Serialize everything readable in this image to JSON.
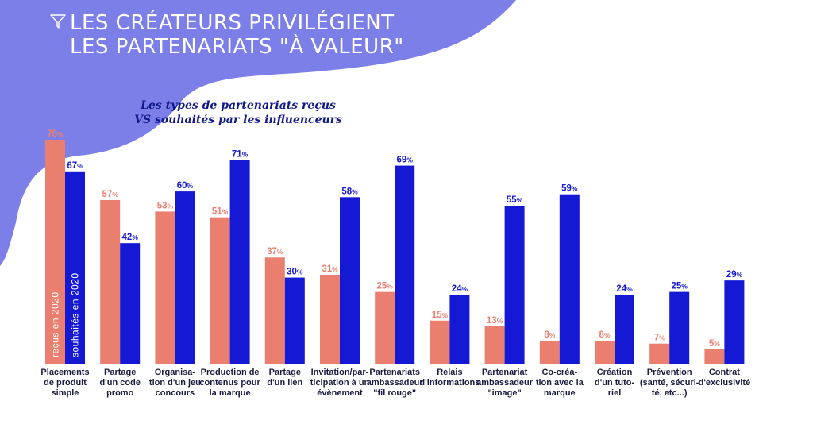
{
  "title": {
    "line1": "LES CRÉATEURS PRIVILÉGIENT",
    "line2": "LES PARTENARIATS \"À VALEUR\"",
    "icon": "funnel-icon"
  },
  "colors": {
    "received": "#ea7f6f",
    "wished": "#1519d4",
    "blob": "#7c7fe8",
    "title": "#ffffff",
    "subtitle": "#10188a"
  },
  "chart_data": {
    "type": "bar",
    "subtitle": [
      "Les types de partenariats reçus",
      "VS souhaités par les influenceurs"
    ],
    "categories": [
      [
        "Placements",
        "de produit",
        "simple"
      ],
      [
        "Partage",
        "d'un code",
        "promo"
      ],
      [
        "Organisa-",
        "tion d'un jeu",
        "concours"
      ],
      [
        "Production de",
        "contenus pour",
        "la marque"
      ],
      [
        "Partage",
        "d'un lien"
      ],
      [
        "Invitation/par-",
        "ticipation à un",
        "évènement"
      ],
      [
        "Partenariats",
        "ambassadeur",
        "\"fil rouge\""
      ],
      [
        "Relais",
        "d'informations"
      ],
      [
        "Partenariat",
        "ambassadeur",
        "\"image\""
      ],
      [
        "Co-créa-",
        "tion avec la",
        "marque"
      ],
      [
        "Création",
        "d'un tuto-",
        "riel"
      ],
      [
        "Prévention",
        "(santé, sécuri-",
        "té, etc...)"
      ],
      [
        "Contrat",
        "d'exclusivité"
      ]
    ],
    "series": [
      {
        "name": "reçus en 2020",
        "values": [
          78,
          57,
          53,
          51,
          37,
          31,
          25,
          15,
          13,
          8,
          8,
          7,
          5
        ]
      },
      {
        "name": "souhaités en 2020",
        "values": [
          67,
          42,
          60,
          71,
          30,
          58,
          69,
          24,
          55,
          59,
          24,
          25,
          29
        ]
      }
    ],
    "value_suffix": "%",
    "ylim": [
      0,
      80
    ],
    "grid": false,
    "legend": "inside-first-bars"
  }
}
